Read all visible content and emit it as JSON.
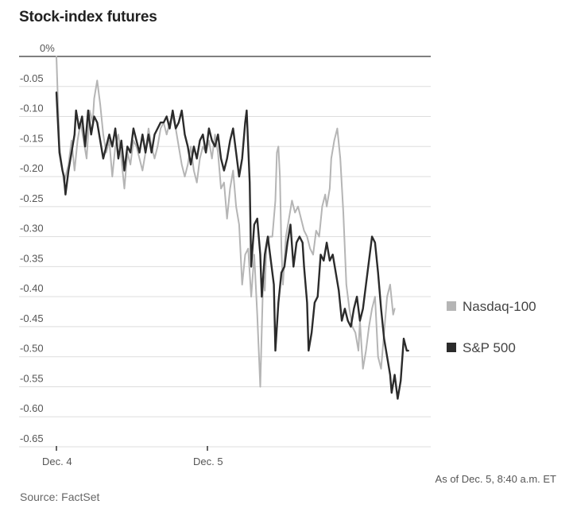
{
  "title": "Stock-index futures",
  "note": "As of Dec. 5, 8:40 a.m. ET",
  "source": "Source: FactSet",
  "colors": {
    "nasdaq": "#b5b5b5",
    "sp500": "#2b2b2b",
    "grid": "#dddddd",
    "zero_line": "#333333"
  },
  "chart_data": {
    "type": "line",
    "title": "Stock-index futures",
    "xlabel": "",
    "ylabel": "",
    "x_ticks": [
      "Dec. 4",
      "Dec. 5"
    ],
    "y_ticks": [
      "0%",
      "-0.05",
      "-0.10",
      "-0.15",
      "-0.20",
      "-0.25",
      "-0.30",
      "-0.35",
      "-0.40",
      "-0.45",
      "-0.50",
      "-0.55",
      "-0.60",
      "-0.65"
    ],
    "ylim": [
      -0.65,
      0
    ],
    "grid": true,
    "legend_position": "right",
    "x_unit": "trading days from Dec. 4",
    "series": [
      {
        "name": "Nasdaq-100",
        "color": "#b5b5b5",
        "points": [
          [
            0.0,
            0.0
          ],
          [
            0.02,
            -0.15
          ],
          [
            0.05,
            -0.21
          ],
          [
            0.08,
            -0.18
          ],
          [
            0.1,
            -0.14
          ],
          [
            0.12,
            -0.19
          ],
          [
            0.14,
            -0.14
          ],
          [
            0.16,
            -0.11
          ],
          [
            0.18,
            -0.14
          ],
          [
            0.2,
            -0.17
          ],
          [
            0.22,
            -0.09
          ],
          [
            0.24,
            -0.11
          ],
          [
            0.25,
            -0.07
          ],
          [
            0.27,
            -0.04
          ],
          [
            0.29,
            -0.08
          ],
          [
            0.31,
            -0.13
          ],
          [
            0.33,
            -0.16
          ],
          [
            0.35,
            -0.14
          ],
          [
            0.37,
            -0.2
          ],
          [
            0.39,
            -0.15
          ],
          [
            0.41,
            -0.13
          ],
          [
            0.43,
            -0.17
          ],
          [
            0.45,
            -0.22
          ],
          [
            0.47,
            -0.16
          ],
          [
            0.49,
            -0.18
          ],
          [
            0.51,
            -0.14
          ],
          [
            0.53,
            -0.15
          ],
          [
            0.55,
            -0.17
          ],
          [
            0.57,
            -0.19
          ],
          [
            0.59,
            -0.16
          ],
          [
            0.61,
            -0.12
          ],
          [
            0.63,
            -0.15
          ],
          [
            0.65,
            -0.17
          ],
          [
            0.67,
            -0.15
          ],
          [
            0.69,
            -0.12
          ],
          [
            0.71,
            -0.11
          ],
          [
            0.73,
            -0.13
          ],
          [
            0.75,
            -0.11
          ],
          [
            0.77,
            -0.1
          ],
          [
            0.79,
            -0.12
          ],
          [
            0.81,
            -0.15
          ],
          [
            0.83,
            -0.18
          ],
          [
            0.85,
            -0.2
          ],
          [
            0.87,
            -0.18
          ],
          [
            0.89,
            -0.15
          ],
          [
            0.91,
            -0.19
          ],
          [
            0.93,
            -0.21
          ],
          [
            0.95,
            -0.17
          ],
          [
            0.97,
            -0.15
          ],
          [
            0.99,
            -0.16
          ],
          [
            1.01,
            -0.14
          ],
          [
            1.03,
            -0.17
          ],
          [
            1.05,
            -0.13
          ],
          [
            1.07,
            -0.16
          ],
          [
            1.09,
            -0.22
          ],
          [
            1.11,
            -0.21
          ],
          [
            1.13,
            -0.27
          ],
          [
            1.15,
            -0.22
          ],
          [
            1.17,
            -0.19
          ],
          [
            1.19,
            -0.25
          ],
          [
            1.21,
            -0.28
          ],
          [
            1.23,
            -0.38
          ],
          [
            1.25,
            -0.33
          ],
          [
            1.27,
            -0.32
          ],
          [
            1.29,
            -0.4
          ],
          [
            1.31,
            -0.33
          ],
          [
            1.33,
            -0.43
          ],
          [
            1.35,
            -0.55
          ],
          [
            1.37,
            -0.36
          ],
          [
            1.38,
            -0.39
          ],
          [
            1.39,
            -0.32
          ],
          [
            1.41,
            -0.3
          ],
          [
            1.43,
            -0.3
          ],
          [
            1.45,
            -0.24
          ],
          [
            1.46,
            -0.16
          ],
          [
            1.47,
            -0.15
          ],
          [
            1.48,
            -0.2
          ],
          [
            1.49,
            -0.32
          ],
          [
            1.5,
            -0.38
          ],
          [
            1.52,
            -0.3
          ],
          [
            1.54,
            -0.27
          ],
          [
            1.56,
            -0.24
          ],
          [
            1.58,
            -0.26
          ],
          [
            1.6,
            -0.25
          ],
          [
            1.62,
            -0.27
          ],
          [
            1.64,
            -0.29
          ],
          [
            1.66,
            -0.3
          ],
          [
            1.68,
            -0.32
          ],
          [
            1.7,
            -0.33
          ],
          [
            1.72,
            -0.29
          ],
          [
            1.74,
            -0.3
          ],
          [
            1.76,
            -0.25
          ],
          [
            1.78,
            -0.23
          ],
          [
            1.79,
            -0.25
          ],
          [
            1.81,
            -0.22
          ],
          [
            1.82,
            -0.17
          ],
          [
            1.84,
            -0.14
          ],
          [
            1.86,
            -0.12
          ],
          [
            1.88,
            -0.17
          ],
          [
            1.9,
            -0.26
          ],
          [
            1.92,
            -0.38
          ],
          [
            1.94,
            -0.42
          ],
          [
            1.96,
            -0.45
          ],
          [
            1.98,
            -0.46
          ],
          [
            2.0,
            -0.49
          ],
          [
            2.01,
            -0.44
          ],
          [
            2.03,
            -0.52
          ],
          [
            2.05,
            -0.49
          ],
          [
            2.07,
            -0.45
          ],
          [
            2.09,
            -0.42
          ],
          [
            2.11,
            -0.4
          ],
          [
            2.13,
            -0.5
          ],
          [
            2.15,
            -0.52
          ],
          [
            2.17,
            -0.46
          ],
          [
            2.19,
            -0.4
          ],
          [
            2.21,
            -0.38
          ],
          [
            2.23,
            -0.43
          ],
          [
            2.24,
            -0.42
          ]
        ]
      },
      {
        "name": "S&P 500",
        "color": "#2b2b2b",
        "points": [
          [
            0.0,
            -0.06
          ],
          [
            0.02,
            -0.16
          ],
          [
            0.04,
            -0.19
          ],
          [
            0.05,
            -0.2
          ],
          [
            0.06,
            -0.23
          ],
          [
            0.08,
            -0.19
          ],
          [
            0.1,
            -0.16
          ],
          [
            0.12,
            -0.13
          ],
          [
            0.13,
            -0.09
          ],
          [
            0.15,
            -0.12
          ],
          [
            0.17,
            -0.1
          ],
          [
            0.19,
            -0.15
          ],
          [
            0.21,
            -0.09
          ],
          [
            0.23,
            -0.13
          ],
          [
            0.25,
            -0.1
          ],
          [
            0.27,
            -0.11
          ],
          [
            0.29,
            -0.14
          ],
          [
            0.31,
            -0.17
          ],
          [
            0.33,
            -0.15
          ],
          [
            0.35,
            -0.13
          ],
          [
            0.37,
            -0.15
          ],
          [
            0.39,
            -0.12
          ],
          [
            0.41,
            -0.17
          ],
          [
            0.43,
            -0.14
          ],
          [
            0.45,
            -0.19
          ],
          [
            0.47,
            -0.15
          ],
          [
            0.49,
            -0.16
          ],
          [
            0.51,
            -0.12
          ],
          [
            0.53,
            -0.14
          ],
          [
            0.55,
            -0.16
          ],
          [
            0.57,
            -0.13
          ],
          [
            0.59,
            -0.16
          ],
          [
            0.61,
            -0.13
          ],
          [
            0.63,
            -0.16
          ],
          [
            0.65,
            -0.13
          ],
          [
            0.67,
            -0.12
          ],
          [
            0.69,
            -0.11
          ],
          [
            0.71,
            -0.11
          ],
          [
            0.73,
            -0.1
          ],
          [
            0.75,
            -0.12
          ],
          [
            0.77,
            -0.09
          ],
          [
            0.79,
            -0.12
          ],
          [
            0.81,
            -0.11
          ],
          [
            0.83,
            -0.09
          ],
          [
            0.85,
            -0.13
          ],
          [
            0.87,
            -0.15
          ],
          [
            0.89,
            -0.18
          ],
          [
            0.91,
            -0.15
          ],
          [
            0.93,
            -0.17
          ],
          [
            0.95,
            -0.14
          ],
          [
            0.97,
            -0.13
          ],
          [
            0.99,
            -0.16
          ],
          [
            1.01,
            -0.12
          ],
          [
            1.03,
            -0.14
          ],
          [
            1.05,
            -0.15
          ],
          [
            1.07,
            -0.13
          ],
          [
            1.09,
            -0.17
          ],
          [
            1.11,
            -0.19
          ],
          [
            1.13,
            -0.17
          ],
          [
            1.15,
            -0.14
          ],
          [
            1.17,
            -0.12
          ],
          [
            1.19,
            -0.16
          ],
          [
            1.21,
            -0.2
          ],
          [
            1.23,
            -0.17
          ],
          [
            1.25,
            -0.11
          ],
          [
            1.26,
            -0.09
          ],
          [
            1.28,
            -0.21
          ],
          [
            1.29,
            -0.35
          ],
          [
            1.31,
            -0.28
          ],
          [
            1.33,
            -0.27
          ],
          [
            1.35,
            -0.33
          ],
          [
            1.36,
            -0.4
          ],
          [
            1.38,
            -0.33
          ],
          [
            1.4,
            -0.3
          ],
          [
            1.42,
            -0.34
          ],
          [
            1.44,
            -0.38
          ],
          [
            1.45,
            -0.49
          ],
          [
            1.47,
            -0.41
          ],
          [
            1.49,
            -0.36
          ],
          [
            1.51,
            -0.35
          ],
          [
            1.53,
            -0.31
          ],
          [
            1.55,
            -0.28
          ],
          [
            1.57,
            -0.35
          ],
          [
            1.59,
            -0.31
          ],
          [
            1.61,
            -0.3
          ],
          [
            1.63,
            -0.31
          ],
          [
            1.64,
            -0.35
          ],
          [
            1.66,
            -0.41
          ],
          [
            1.67,
            -0.49
          ],
          [
            1.69,
            -0.46
          ],
          [
            1.71,
            -0.41
          ],
          [
            1.73,
            -0.4
          ],
          [
            1.75,
            -0.33
          ],
          [
            1.77,
            -0.34
          ],
          [
            1.79,
            -0.31
          ],
          [
            1.81,
            -0.34
          ],
          [
            1.83,
            -0.33
          ],
          [
            1.85,
            -0.36
          ],
          [
            1.87,
            -0.39
          ],
          [
            1.89,
            -0.44
          ],
          [
            1.91,
            -0.42
          ],
          [
            1.93,
            -0.44
          ],
          [
            1.95,
            -0.45
          ],
          [
            1.97,
            -0.42
          ],
          [
            1.99,
            -0.4
          ],
          [
            2.01,
            -0.44
          ],
          [
            2.03,
            -0.42
          ],
          [
            2.05,
            -0.38
          ],
          [
            2.07,
            -0.34
          ],
          [
            2.09,
            -0.3
          ],
          [
            2.11,
            -0.31
          ],
          [
            2.13,
            -0.36
          ],
          [
            2.15,
            -0.42
          ],
          [
            2.17,
            -0.47
          ],
          [
            2.19,
            -0.5
          ],
          [
            2.21,
            -0.53
          ],
          [
            2.22,
            -0.56
          ],
          [
            2.24,
            -0.53
          ],
          [
            2.26,
            -0.57
          ],
          [
            2.28,
            -0.54
          ],
          [
            2.3,
            -0.47
          ],
          [
            2.32,
            -0.49
          ],
          [
            2.33,
            -0.49
          ]
        ]
      }
    ]
  }
}
